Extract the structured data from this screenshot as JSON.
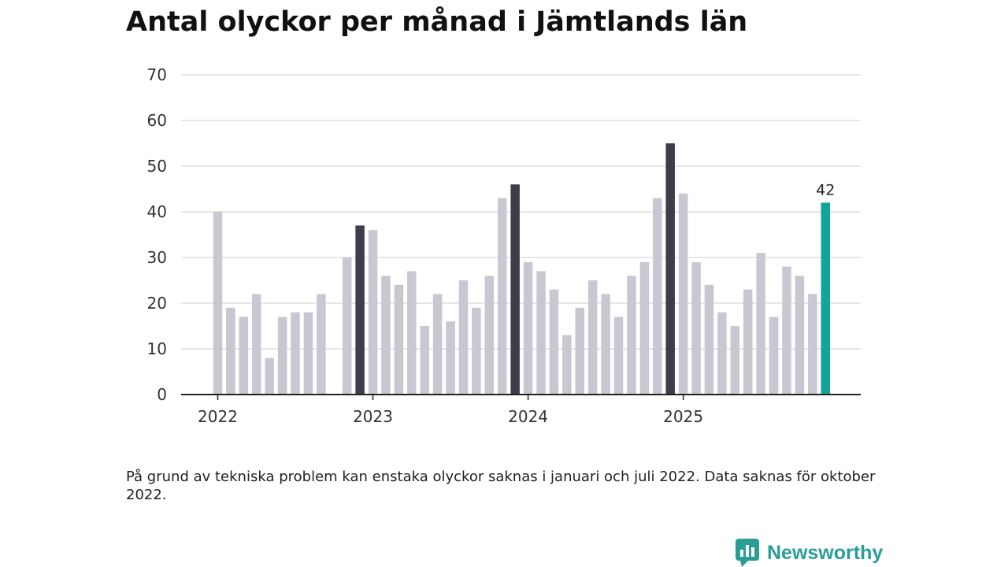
{
  "title": "Antal olyckor per månad i Jämtlands län",
  "note": "På grund av tekniska problem kan enstaka olyckor saknas i januari och juli 2022. Data saknas för oktober 2022.",
  "brand": {
    "name": "Newsworthy",
    "icon": "newsworthy-logo-icon",
    "color": "#2a9d96"
  },
  "colors": {
    "bar": "#c8c7d2",
    "highlight": "#3e3d4c",
    "latest": "#13a39a",
    "grid": "#dddddd",
    "axis": "#222222"
  },
  "chart_data": {
    "type": "bar",
    "title": "Antal olyckor per månad i Jämtlands län",
    "xlabel": "",
    "ylabel": "",
    "ylim": [
      0,
      70
    ],
    "yticks": [
      0,
      10,
      20,
      30,
      40,
      50,
      60,
      70
    ],
    "grid": true,
    "x_tick_labels": [
      {
        "label": "2022",
        "index": 0
      },
      {
        "label": "2023",
        "index": 12
      },
      {
        "label": "2024",
        "index": 24
      },
      {
        "label": "2025",
        "index": 36
      }
    ],
    "months": [
      "2022-01",
      "2022-02",
      "2022-03",
      "2022-04",
      "2022-05",
      "2022-06",
      "2022-07",
      "2022-08",
      "2022-09",
      "2022-10",
      "2022-11",
      "2022-12",
      "2023-01",
      "2023-02",
      "2023-03",
      "2023-04",
      "2023-05",
      "2023-06",
      "2023-07",
      "2023-08",
      "2023-09",
      "2023-10",
      "2023-11",
      "2023-12",
      "2024-01",
      "2024-02",
      "2024-03",
      "2024-04",
      "2024-05",
      "2024-06",
      "2024-07",
      "2024-08",
      "2024-09",
      "2024-10",
      "2024-11",
      "2024-12",
      "2025-01",
      "2025-02",
      "2025-03",
      "2025-04",
      "2025-05",
      "2025-06",
      "2025-07",
      "2025-08",
      "2025-09",
      "2025-10",
      "2025-11",
      "2025-12"
    ],
    "values": [
      40,
      19,
      17,
      22,
      8,
      17,
      18,
      18,
      22,
      null,
      30,
      37,
      36,
      26,
      24,
      27,
      15,
      22,
      16,
      25,
      19,
      26,
      43,
      46,
      29,
      27,
      23,
      13,
      19,
      25,
      22,
      17,
      26,
      29,
      43,
      55,
      44,
      29,
      24,
      18,
      15,
      23,
      31,
      17,
      28,
      26,
      22,
      42
    ],
    "highlighted_months": [
      "2022-12",
      "2023-12",
      "2024-12"
    ],
    "latest_month": "2025-12",
    "data_labels": [
      {
        "month": "2025-12",
        "text": "42"
      }
    ]
  }
}
